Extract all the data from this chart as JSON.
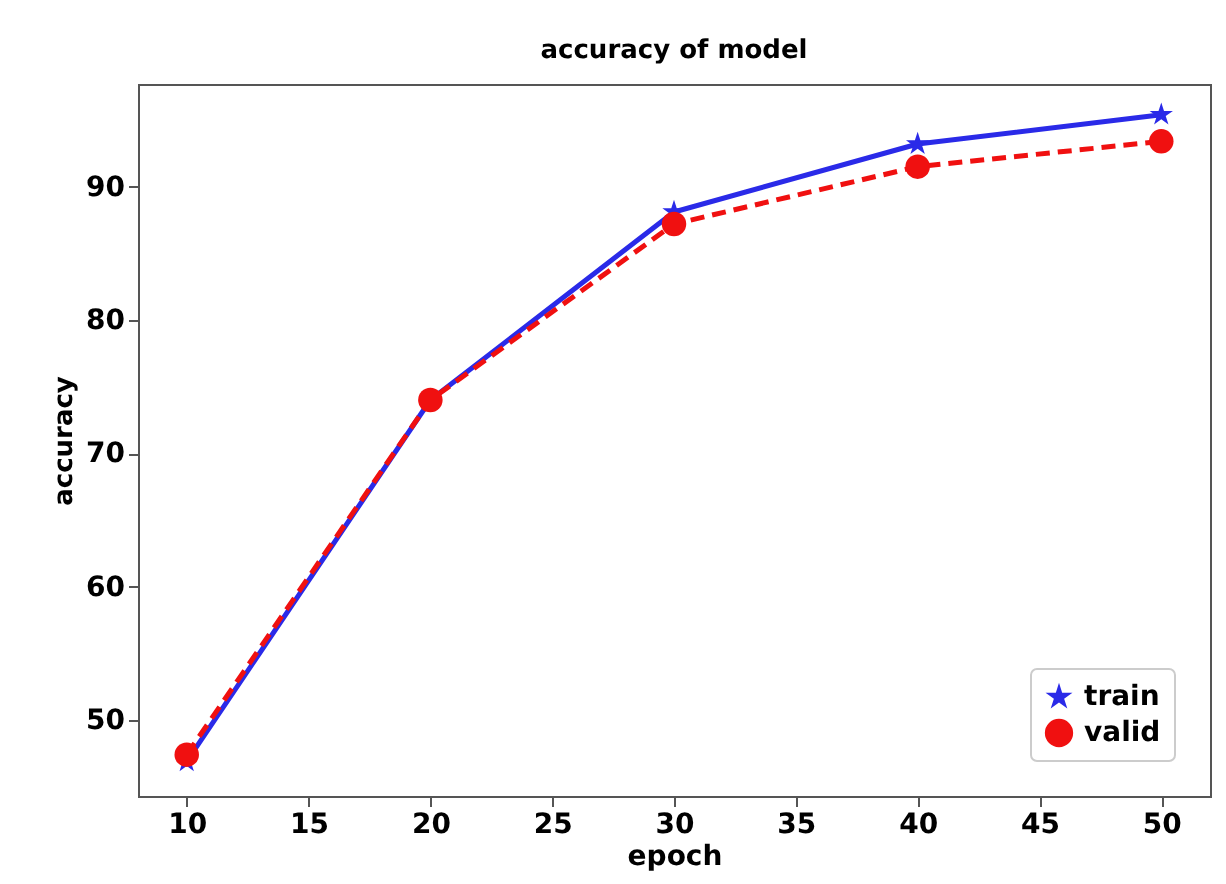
{
  "chart_data": {
    "type": "line",
    "title": "accuracy of model",
    "xlabel": "epoch",
    "ylabel": "accuracy",
    "x": [
      10,
      20,
      30,
      40,
      50
    ],
    "series": [
      {
        "name": "train",
        "color": "#2a2ae8",
        "values": [
          46.9,
          74.0,
          88.1,
          93.2,
          95.4
        ],
        "marker": "star",
        "line_style": "solid"
      },
      {
        "name": "valid",
        "color": "#f01010",
        "values": [
          47.4,
          74.0,
          87.2,
          91.5,
          93.4
        ],
        "marker": "circle",
        "line_style": "dashed"
      }
    ],
    "xlim": [
      8,
      52
    ],
    "xticks": [
      10,
      15,
      20,
      25,
      30,
      35,
      40,
      45,
      50
    ],
    "ylim": [
      44.3,
      97.7
    ],
    "yticks": [
      50,
      60,
      70,
      80,
      90
    ],
    "grid": false,
    "legend": "bottom right"
  }
}
